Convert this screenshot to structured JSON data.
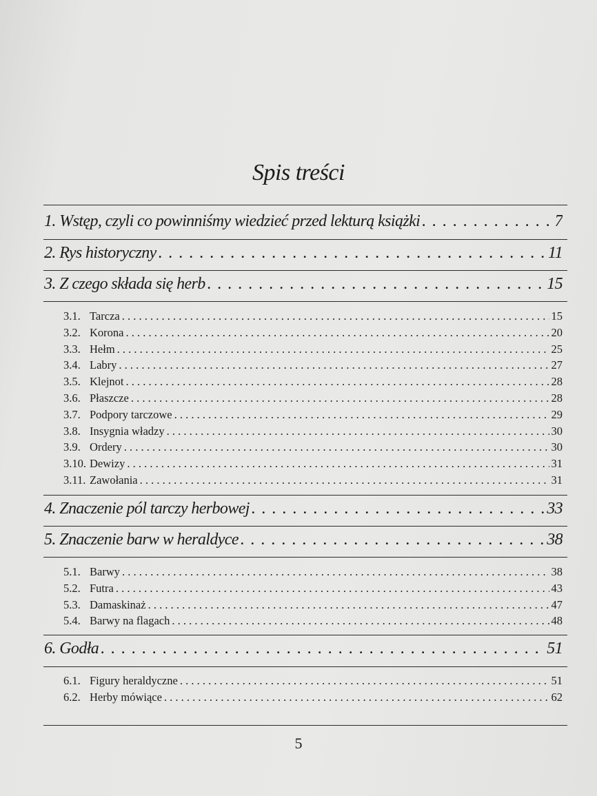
{
  "title": "Spis treści",
  "chapters": [
    {
      "label": "1. Wstęp, czyli co powinniśmy wiedzieć przed lekturą książki",
      "page": "7"
    },
    {
      "label": "2. Rys historyczny",
      "page": "11"
    },
    {
      "label": "3. Z czego składa się herb",
      "page": "15"
    },
    {
      "label": "4. Znaczenie pól tarczy herbowej",
      "page": "33"
    },
    {
      "label": "5. Znaczenie barw w heraldyce",
      "page": "38"
    },
    {
      "label": "6. Godła",
      "page": "51"
    }
  ],
  "sections3": [
    {
      "num": "3.1.",
      "label": "Tarcza",
      "page": "15"
    },
    {
      "num": "3.2.",
      "label": "Korona",
      "page": "20"
    },
    {
      "num": "3.3.",
      "label": "Hełm",
      "page": "25"
    },
    {
      "num": "3.4.",
      "label": "Labry",
      "page": "27"
    },
    {
      "num": "3.5.",
      "label": "Klejnot",
      "page": "28"
    },
    {
      "num": "3.6.",
      "label": "Płaszcze",
      "page": "28"
    },
    {
      "num": "3.7.",
      "label": "Podpory tarczowe",
      "page": "29"
    },
    {
      "num": "3.8.",
      "label": "Insygnia władzy",
      "page": "30"
    },
    {
      "num": "3.9.",
      "label": "Ordery",
      "page": "30"
    },
    {
      "num": "3.10.",
      "label": "Dewizy",
      "page": "31"
    },
    {
      "num": "3.11.",
      "label": "Zawołania",
      "page": "31"
    }
  ],
  "sections5": [
    {
      "num": "5.1.",
      "label": "Barwy",
      "page": "38"
    },
    {
      "num": "5.2.",
      "label": "Futra",
      "page": "43"
    },
    {
      "num": "5.3.",
      "label": "Damaskinaż",
      "page": "47"
    },
    {
      "num": "5.4.",
      "label": "Barwy na flagach",
      "page": "48"
    }
  ],
  "sections6": [
    {
      "num": "6.1.",
      "label": "Figury heraldyczne",
      "page": "51"
    },
    {
      "num": "6.2.",
      "label": "Herby mówiące",
      "page": "62"
    }
  ],
  "folio": "5"
}
